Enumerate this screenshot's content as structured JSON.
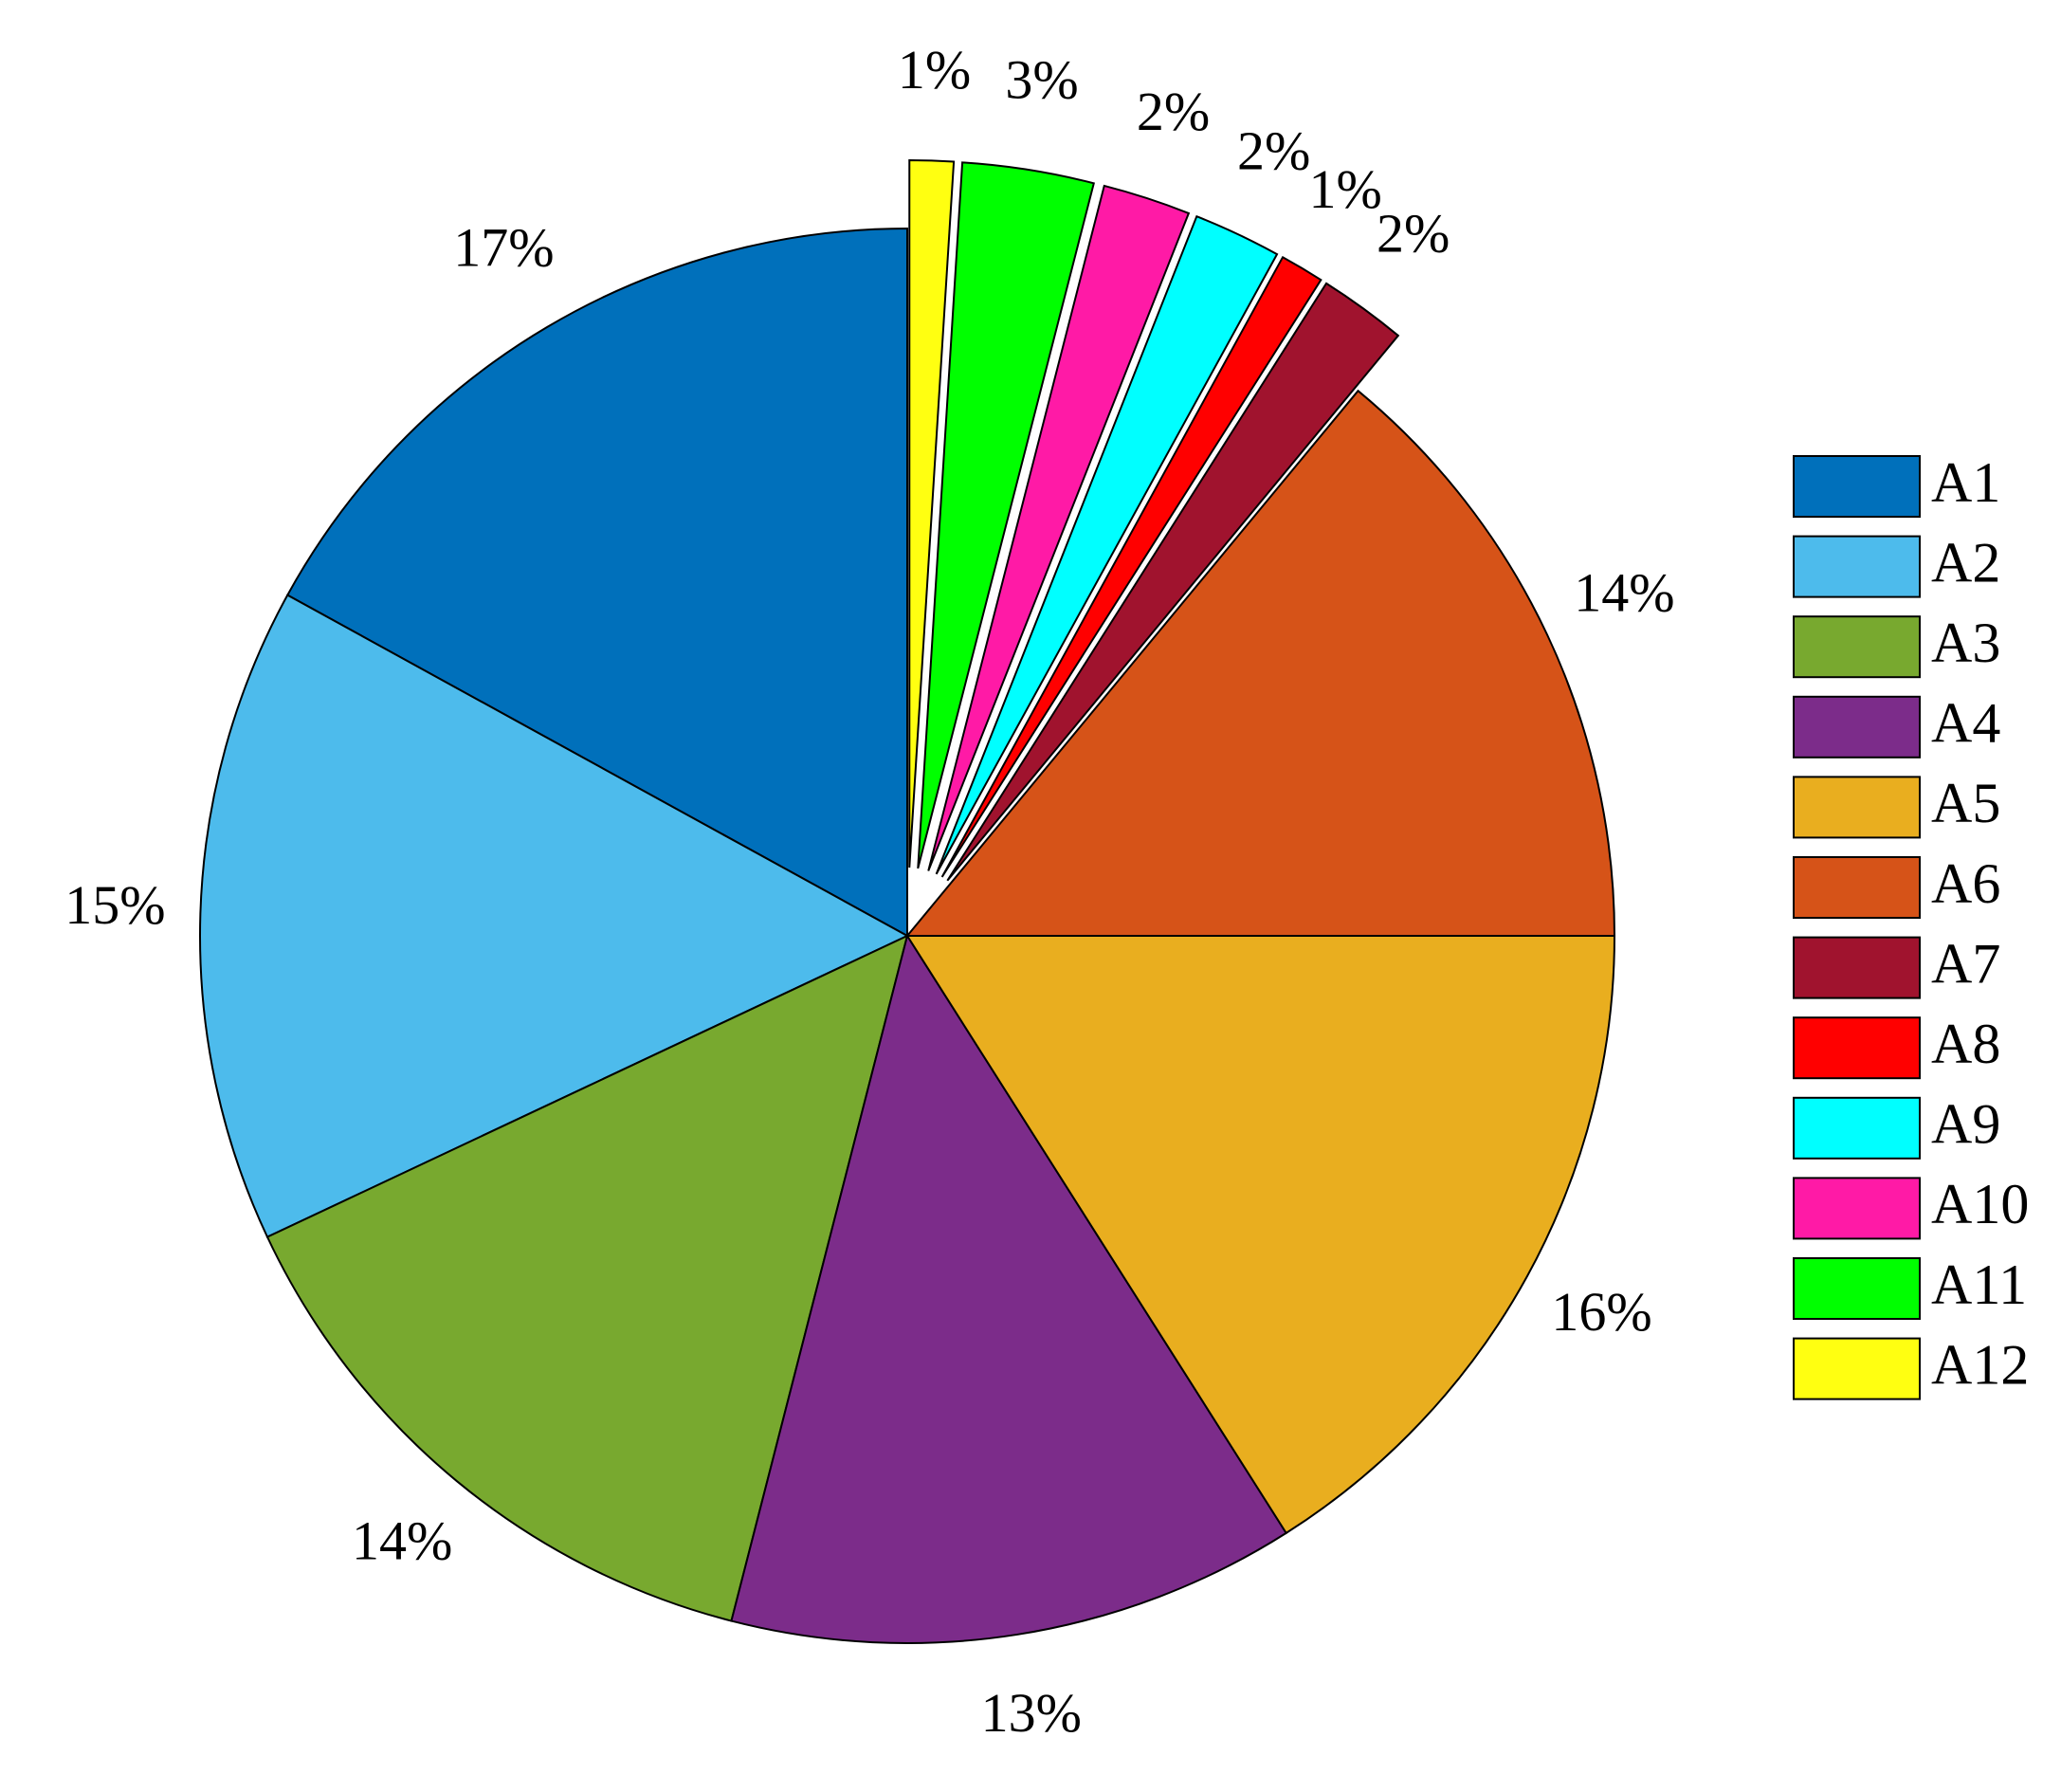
{
  "chart_data": {
    "type": "pie",
    "categories": [
      "A1",
      "A2",
      "A3",
      "A4",
      "A5",
      "A6",
      "A7",
      "A8",
      "A9",
      "A10",
      "A11",
      "A12"
    ],
    "values": [
      17,
      15,
      14,
      13,
      16,
      14,
      2,
      1,
      2,
      2,
      3,
      1
    ],
    "value_labels": [
      "17%",
      "15%",
      "14%",
      "13%",
      "16%",
      "14%",
      "2%",
      "1%",
      "2%",
      "2%",
      "3%",
      "1%"
    ],
    "colors": [
      "#0070bb",
      "#4dbbec",
      "#78a92f",
      "#7c2c8a",
      "#e9ae1f",
      "#d65318",
      "#a0132e",
      "#ff0000",
      "#00ffff",
      "#ff1aa6",
      "#00ff00",
      "#ffff11"
    ],
    "explode": [
      false,
      false,
      false,
      false,
      false,
      false,
      true,
      true,
      true,
      true,
      true,
      true
    ],
    "legend": "right"
  }
}
